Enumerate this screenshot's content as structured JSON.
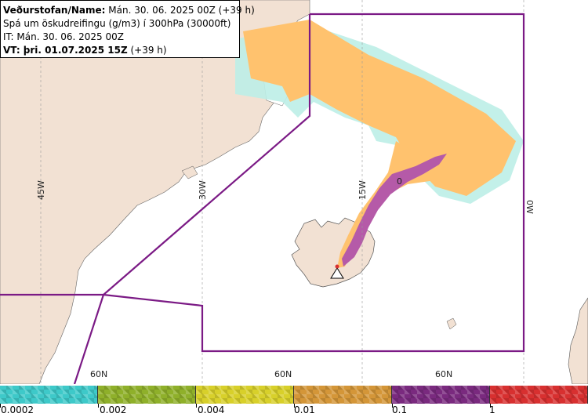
{
  "header": {
    "org_label": "Veðurstofan/Name:",
    "org_value": " Mán. 30. 06. 2025 00Z (+39 h)",
    "forecast_desc": "Spá um öskudreifingu (g/m3) í 300hPa (30000ft)",
    "issue_time": "IT: Mán. 30. 06. 2025 00Z",
    "valid_label": "VT: þri. 01.07.2025 15Z",
    "valid_value": " (+39 h)"
  },
  "map": {
    "longitude_labels": [
      "45W",
      "30W",
      "15W",
      "0W"
    ],
    "latitude_labels": [
      "60N",
      "60N",
      "60N"
    ],
    "contour_label": "0",
    "colors": {
      "land": "#f2e1d3",
      "sea": "#ffffff",
      "boundary": "#7b1a85",
      "ash_low": "#ffc26e",
      "ash_mid": "#b55aa8",
      "ash_trace": "#bdeee7"
    }
  },
  "legend": {
    "labels": [
      "0.0002",
      "0.002",
      "0.004",
      "0.01",
      "0.1",
      "1"
    ],
    "colors": [
      "#3ec9c9",
      "#8fb02a",
      "#d8d02a",
      "#d49638",
      "#7a2a7f",
      "#d83030"
    ]
  }
}
